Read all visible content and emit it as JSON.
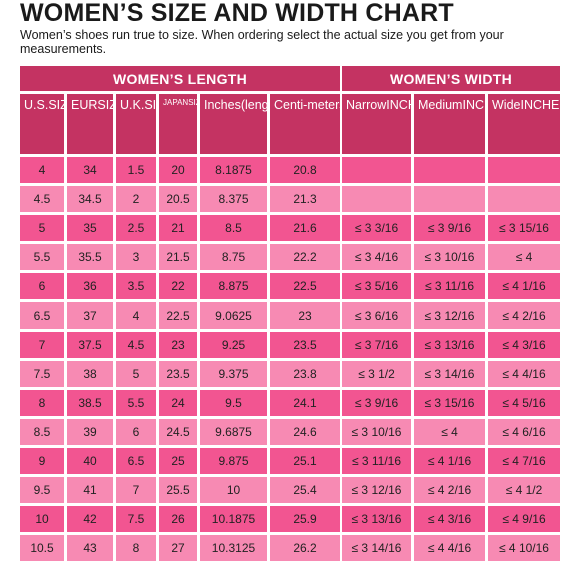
{
  "title": "WOMEN’S SIZE AND WIDTH CHART",
  "subtitle": "Women’s shoes run true to size.  When ordering select the actual size you get from your measurements.",
  "colors": {
    "header": "#c43362",
    "dark_cell": "#f25591",
    "light_cell": "#f78ab3"
  },
  "length_table": {
    "header": "WOMEN’S LENGTH",
    "columns": [
      {
        "lines": [
          "U.S.",
          "SIZE"
        ]
      },
      {
        "lines": [
          "EUR",
          "SIZE"
        ]
      },
      {
        "lines": [
          "U.K.",
          "SIZE"
        ]
      },
      {
        "lines": [
          "JAPAN",
          "SIZE"
        ]
      },
      {
        "lines": [
          "Inches",
          "(length)"
        ]
      },
      {
        "lines": [
          "Centi-",
          "meters",
          "(length)"
        ]
      }
    ],
    "rows": [
      [
        "4",
        "34",
        "1.5",
        "20",
        "8.1875",
        "20.8"
      ],
      [
        "4.5",
        "34.5",
        "2",
        "20.5",
        "8.375",
        "21.3"
      ],
      [
        "5",
        "35",
        "2.5",
        "21",
        "8.5",
        "21.6"
      ],
      [
        "5.5",
        "35.5",
        "3",
        "21.5",
        "8.75",
        "22.2"
      ],
      [
        "6",
        "36",
        "3.5",
        "22",
        "8.875",
        "22.5"
      ],
      [
        "6.5",
        "37",
        "4",
        "22.5",
        "9.0625",
        "23"
      ],
      [
        "7",
        "37.5",
        "4.5",
        "23",
        "9.25",
        "23.5"
      ],
      [
        "7.5",
        "38",
        "5",
        "23.5",
        "9.375",
        "23.8"
      ],
      [
        "8",
        "38.5",
        "5.5",
        "24",
        "9.5",
        "24.1"
      ],
      [
        "8.5",
        "39",
        "6",
        "24.5",
        "9.6875",
        "24.6"
      ],
      [
        "9",
        "40",
        "6.5",
        "25",
        "9.875",
        "25.1"
      ],
      [
        "9.5",
        "41",
        "7",
        "25.5",
        "10",
        "25.4"
      ],
      [
        "10",
        "42",
        "7.5",
        "26",
        "10.1875",
        "25.9"
      ],
      [
        "10.5",
        "43",
        "8",
        "27",
        "10.3125",
        "26.2"
      ]
    ]
  },
  "width_table": {
    "header": "WOMEN’S WIDTH",
    "columns": [
      {
        "lines": [
          "Narrow",
          "INCHES"
        ]
      },
      {
        "lines": [
          "Medium",
          "INCHES"
        ]
      },
      {
        "lines": [
          "Wide",
          "INCHES"
        ]
      }
    ],
    "rows": [
      [
        "",
        "",
        ""
      ],
      [
        "",
        "",
        ""
      ],
      [
        "≤ 3 3/16",
        "≤ 3 9/16",
        "≤ 3 15/16"
      ],
      [
        "≤ 3 4/16",
        "≤ 3 10/16",
        "≤ 4"
      ],
      [
        "≤ 3 5/16",
        "≤ 3 11/16",
        "≤ 4 1/16"
      ],
      [
        "≤ 3 6/16",
        "≤ 3 12/16",
        "≤ 4 2/16"
      ],
      [
        "≤ 3 7/16",
        "≤ 3 13/16",
        "≤ 4 3/16"
      ],
      [
        "≤ 3 1/2",
        "≤ 3 14/16",
        "≤ 4 4/16"
      ],
      [
        "≤ 3 9/16",
        "≤ 3 15/16",
        "≤ 4 5/16"
      ],
      [
        "≤ 3 10/16",
        "≤ 4",
        "≤ 4 6/16"
      ],
      [
        "≤ 3 11/16",
        "≤ 4 1/16",
        "≤ 4 7/16"
      ],
      [
        "≤ 3 12/16",
        "≤ 4 2/16",
        "≤ 4 1/2"
      ],
      [
        "≤ 3 13/16",
        "≤ 4 3/16",
        "≤ 4 9/16"
      ],
      [
        "≤ 3 14/16",
        "≤ 4 4/16",
        "≤ 4 10/16"
      ]
    ]
  }
}
